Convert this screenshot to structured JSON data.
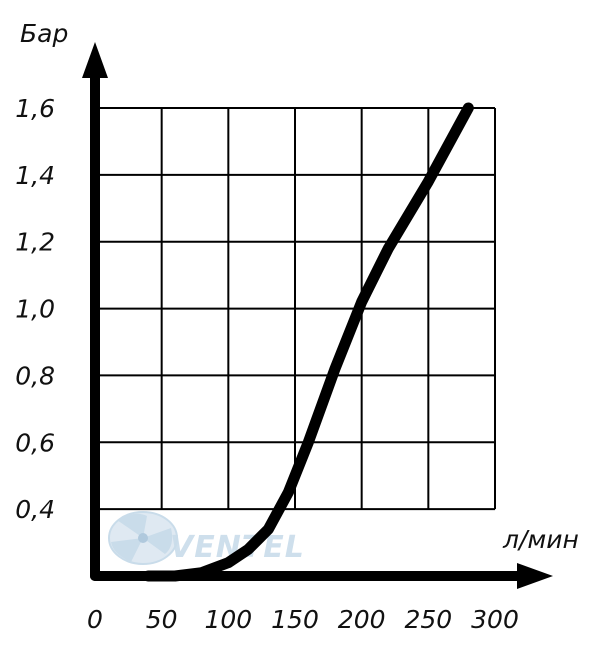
{
  "chart_data": {
    "type": "line",
    "xlabel": "л/мин",
    "ylabel": "Бар",
    "xlim": [
      0,
      300
    ],
    "ylim": [
      0.2,
      1.6
    ],
    "x_ticks": [
      "0",
      "50",
      "100",
      "150",
      "200",
      "250",
      "300"
    ],
    "y_ticks": [
      "0,4",
      "0,6",
      "0,8",
      "1,0",
      "1,2",
      "1,4",
      "1,6"
    ],
    "grid": true,
    "series": [
      {
        "x": [
          40,
          60,
          80,
          100,
          115,
          130,
          145,
          160,
          180,
          200,
          220,
          250,
          280
        ],
        "y": [
          0.2,
          0.2,
          0.21,
          0.24,
          0.28,
          0.34,
          0.45,
          0.6,
          0.82,
          1.02,
          1.18,
          1.38,
          1.6
        ]
      }
    ],
    "colors": {
      "line": "#000000",
      "grid": "#000000",
      "axes": "#000000"
    }
  },
  "watermark": {
    "text": "VENTEL",
    "icon": "fan-logo-icon",
    "colors": {
      "primary": "#c9dcea",
      "accent": "#b0c9dd"
    }
  }
}
